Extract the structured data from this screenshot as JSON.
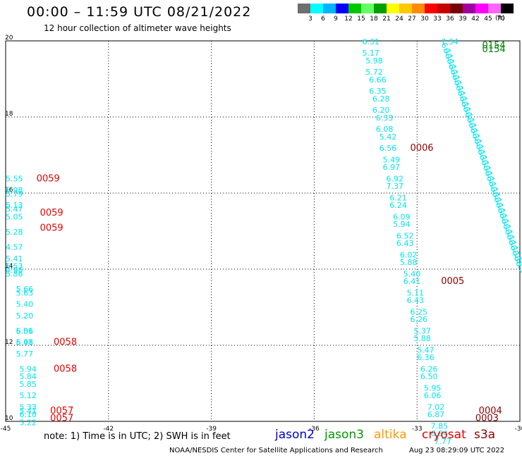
{
  "header": {
    "title": "00:00 – 11:59 UTC 08/21/2022",
    "subtitle": "12 hour collection of altimeter wave heights"
  },
  "colorbar": {
    "colors": [
      "#6e6e6e",
      "#00ffff",
      "#00b4ff",
      "#0000ff",
      "#00c800",
      "#64ff64",
      "#00a000",
      "#ffff00",
      "#ffc800",
      "#ff8c00",
      "#ff0000",
      "#c80000",
      "#780000",
      "#a000a0",
      "#ff00ff",
      "#ff64ff",
      "#000000"
    ],
    "labels": [
      "3",
      "6",
      "9",
      "12",
      "15",
      "18",
      "21",
      "24",
      "27",
      "30",
      "33",
      "36",
      "39",
      "42",
      "45",
      "70"
    ],
    "unit": "(ft)"
  },
  "chart_data": {
    "type": "scatter",
    "title": "00:00 – 11:59 UTC 08/21/2022",
    "subtitle": "12 hour collection of altimeter wave heights",
    "xlim": [
      -45,
      -30
    ],
    "ylim": [
      10,
      20
    ],
    "xticks": [
      "-45",
      "-42",
      "-39",
      "-36",
      "-33",
      "-30"
    ],
    "yticks": [
      "10",
      "12",
      "14",
      "16",
      "18",
      "20"
    ],
    "grid": true,
    "swh_labels": [
      {
        "lon": -45.0,
        "lat": 16.4,
        "text": "5.55",
        "color": "#00e5ee"
      },
      {
        "lon": -45.0,
        "lat": 16.1,
        "text": "5.98",
        "color": "#00e5ee"
      },
      {
        "lon": -45.0,
        "lat": 16.0,
        "text": "5.79",
        "color": "#00e5ee"
      },
      {
        "lon": -45.0,
        "lat": 15.7,
        "text": "5.13",
        "color": "#00e5ee"
      },
      {
        "lon": -45.0,
        "lat": 15.6,
        "text": "5.47",
        "color": "#00e5ee"
      },
      {
        "lon": -45.0,
        "lat": 15.4,
        "text": "5.05",
        "color": "#00e5ee"
      },
      {
        "lon": -45.0,
        "lat": 15.0,
        "text": "5.28",
        "color": "#00e5ee"
      },
      {
        "lon": -45.0,
        "lat": 14.6,
        "text": "4.57",
        "color": "#00e5ee"
      },
      {
        "lon": -45.0,
        "lat": 14.3,
        "text": "5.41",
        "color": "#00e5ee"
      },
      {
        "lon": -45.0,
        "lat": 14.1,
        "text": "5.53",
        "color": "#00e5ee"
      },
      {
        "lon": -45.0,
        "lat": 14.0,
        "text": "4.96",
        "color": "#00e5ee"
      },
      {
        "lon": -45.0,
        "lat": 13.9,
        "text": "5.86",
        "color": "#00e5ee"
      },
      {
        "lon": -44.7,
        "lat": 13.5,
        "text": "5.66",
        "color": "#00e5ee"
      },
      {
        "lon": -44.7,
        "lat": 13.4,
        "text": "5.63",
        "color": "#00e5ee"
      },
      {
        "lon": -44.7,
        "lat": 13.1,
        "text": "5.40",
        "color": "#00e5ee"
      },
      {
        "lon": -44.7,
        "lat": 12.8,
        "text": "5.20",
        "color": "#00e5ee"
      },
      {
        "lon": -44.7,
        "lat": 12.4,
        "text": "6.51",
        "color": "#00e5ee"
      },
      {
        "lon": -44.7,
        "lat": 12.4,
        "text": "5.06",
        "color": "#00e5ee"
      },
      {
        "lon": -44.7,
        "lat": 12.1,
        "text": "6.01",
        "color": "#00e5ee"
      },
      {
        "lon": -44.7,
        "lat": 12.1,
        "text": "5.48",
        "color": "#00e5ee"
      },
      {
        "lon": -44.7,
        "lat": 11.8,
        "text": "5.77",
        "color": "#00e5ee"
      },
      {
        "lon": -44.6,
        "lat": 11.4,
        "text": "5.94",
        "color": "#00e5ee"
      },
      {
        "lon": -44.6,
        "lat": 11.2,
        "text": "5.84",
        "color": "#00e5ee"
      },
      {
        "lon": -44.6,
        "lat": 11.0,
        "text": "5.85",
        "color": "#00e5ee"
      },
      {
        "lon": -44.6,
        "lat": 10.7,
        "text": "5.12",
        "color": "#00e5ee"
      },
      {
        "lon": -44.6,
        "lat": 10.4,
        "text": "5.33",
        "color": "#00e5ee"
      },
      {
        "lon": -44.6,
        "lat": 10.3,
        "text": "5.41",
        "color": "#00e5ee"
      },
      {
        "lon": -44.6,
        "lat": 10.2,
        "text": "6.10",
        "color": "#00e5ee"
      },
      {
        "lon": -44.6,
        "lat": 9.99,
        "text": "5.22",
        "color": "#00e5ee"
      },
      {
        "lon": -34.6,
        "lat": 20.0,
        "text": "6.31",
        "color": "#00e5ee"
      },
      {
        "lon": -34.6,
        "lat": 19.7,
        "text": "5.17",
        "color": "#00e5ee"
      },
      {
        "lon": -34.5,
        "lat": 19.5,
        "text": "5.98",
        "color": "#00e5ee"
      },
      {
        "lon": -34.5,
        "lat": 19.2,
        "text": "5.72",
        "color": "#00e5ee"
      },
      {
        "lon": -34.4,
        "lat": 19.0,
        "text": "6.66",
        "color": "#00e5ee"
      },
      {
        "lon": -34.4,
        "lat": 18.7,
        "text": "6.35",
        "color": "#00e5ee"
      },
      {
        "lon": -34.3,
        "lat": 18.5,
        "text": "6.28",
        "color": "#00e5ee"
      },
      {
        "lon": -34.3,
        "lat": 18.2,
        "text": "6.20",
        "color": "#00e5ee"
      },
      {
        "lon": -34.2,
        "lat": 18.0,
        "text": "6.33",
        "color": "#00e5ee"
      },
      {
        "lon": -34.2,
        "lat": 17.7,
        "text": "6.08",
        "color": "#00e5ee"
      },
      {
        "lon": -34.1,
        "lat": 17.5,
        "text": "5.42",
        "color": "#00e5ee"
      },
      {
        "lon": -34.1,
        "lat": 17.2,
        "text": "6.56",
        "color": "#00e5ee"
      },
      {
        "lon": -34.0,
        "lat": 16.9,
        "text": "5.49",
        "color": "#00e5ee"
      },
      {
        "lon": -34.0,
        "lat": 16.7,
        "text": "6.97",
        "color": "#00e5ee"
      },
      {
        "lon": -33.9,
        "lat": 16.4,
        "text": "6.92",
        "color": "#00e5ee"
      },
      {
        "lon": -33.9,
        "lat": 16.2,
        "text": "7.37",
        "color": "#00e5ee"
      },
      {
        "lon": -33.8,
        "lat": 15.9,
        "text": "6.21",
        "color": "#00e5ee"
      },
      {
        "lon": -33.8,
        "lat": 15.7,
        "text": "6.24",
        "color": "#00e5ee"
      },
      {
        "lon": -33.7,
        "lat": 15.4,
        "text": "6.09",
        "color": "#00e5ee"
      },
      {
        "lon": -33.7,
        "lat": 15.2,
        "text": "5.94",
        "color": "#00e5ee"
      },
      {
        "lon": -33.6,
        "lat": 14.9,
        "text": "6.52",
        "color": "#00e5ee"
      },
      {
        "lon": -33.6,
        "lat": 14.7,
        "text": "6.43",
        "color": "#00e5ee"
      },
      {
        "lon": -33.5,
        "lat": 14.4,
        "text": "6.02",
        "color": "#00e5ee"
      },
      {
        "lon": -33.5,
        "lat": 14.2,
        "text": "5.88",
        "color": "#00e5ee"
      },
      {
        "lon": -33.4,
        "lat": 13.9,
        "text": "5.40",
        "color": "#00e5ee"
      },
      {
        "lon": -33.4,
        "lat": 13.7,
        "text": "6.41",
        "color": "#00e5ee"
      },
      {
        "lon": -33.3,
        "lat": 13.4,
        "text": "5.11",
        "color": "#00e5ee"
      },
      {
        "lon": -33.3,
        "lat": 13.2,
        "text": "6.43",
        "color": "#00e5ee"
      },
      {
        "lon": -33.2,
        "lat": 12.9,
        "text": "6.25",
        "color": "#00e5ee"
      },
      {
        "lon": -33.2,
        "lat": 12.7,
        "text": "6.26",
        "color": "#00e5ee"
      },
      {
        "lon": -33.1,
        "lat": 12.4,
        "text": "5.37",
        "color": "#00e5ee"
      },
      {
        "lon": -33.1,
        "lat": 12.2,
        "text": "5.88",
        "color": "#00e5ee"
      },
      {
        "lon": -33.0,
        "lat": 11.9,
        "text": "5.47",
        "color": "#00e5ee"
      },
      {
        "lon": -33.0,
        "lat": 11.7,
        "text": "6.36",
        "color": "#00e5ee"
      },
      {
        "lon": -32.9,
        "lat": 11.4,
        "text": "6.26",
        "color": "#00e5ee"
      },
      {
        "lon": -32.9,
        "lat": 11.2,
        "text": "6.50",
        "color": "#00e5ee"
      },
      {
        "lon": -32.8,
        "lat": 10.9,
        "text": "5.95",
        "color": "#00e5ee"
      },
      {
        "lon": -32.8,
        "lat": 10.7,
        "text": "6.06",
        "color": "#00e5ee"
      },
      {
        "lon": -32.7,
        "lat": 10.4,
        "text": "7.02",
        "color": "#00e5ee"
      },
      {
        "lon": -32.7,
        "lat": 10.2,
        "text": "6.87",
        "color": "#00e5ee"
      },
      {
        "lon": -32.6,
        "lat": 9.9,
        "text": "7.85",
        "color": "#00e5ee"
      },
      {
        "lon": -32.6,
        "lat": 9.7,
        "text": "6.84",
        "color": "#00e5ee"
      },
      {
        "lon": -32.5,
        "lat": 9.5,
        "text": "7.77",
        "color": "#00e5ee"
      },
      {
        "lon": -32.3,
        "lat": 20.0,
        "text": "7.34",
        "color": "#00e5ee"
      }
    ],
    "pass_labels": [
      {
        "lon": -44.1,
        "lat": 16.4,
        "text": "0059",
        "color": "#e60000"
      },
      {
        "lon": -44.0,
        "lat": 15.5,
        "text": "0059",
        "color": "#e60000"
      },
      {
        "lon": -44.0,
        "lat": 15.1,
        "text": "0059",
        "color": "#e60000"
      },
      {
        "lon": -43.6,
        "lat": 12.1,
        "text": "0058",
        "color": "#e60000"
      },
      {
        "lon": -43.6,
        "lat": 11.4,
        "text": "0058",
        "color": "#e60000"
      },
      {
        "lon": -43.7,
        "lat": 10.3,
        "text": "0057",
        "color": "#e60000"
      },
      {
        "lon": -43.7,
        "lat": 10.1,
        "text": "0057",
        "color": "#e60000"
      },
      {
        "lon": -33.2,
        "lat": 17.2,
        "text": "0006",
        "color": "#8b0000"
      },
      {
        "lon": -32.3,
        "lat": 13.7,
        "text": "0005",
        "color": "#8b0000"
      },
      {
        "lon": -31.2,
        "lat": 10.3,
        "text": "0004",
        "color": "#8b0000"
      },
      {
        "lon": -31.3,
        "lat": 10.1,
        "text": "0003",
        "color": "#8b0000"
      },
      {
        "lon": -31.1,
        "lat": 19.9,
        "text": "0154",
        "color": "#008000"
      },
      {
        "lon": -31.1,
        "lat": 19.8,
        "text": "0154",
        "color": "#008000"
      },
      {
        "lon": -29.8,
        "lat": 17.3,
        "text": "0153",
        "color": "#008000"
      },
      {
        "lon": -29.8,
        "lat": 17.2,
        "text": "0153",
        "color": "#008000"
      }
    ]
  },
  "legend": {
    "note": "note: 1) Time is in UTC; 2) SWH is in feet",
    "satellites": [
      {
        "name": "jason2",
        "color": "#0000cc"
      },
      {
        "name": "jason3",
        "color": "#009900"
      },
      {
        "name": "altika",
        "color": "#ff9900"
      },
      {
        "name": "cryosat",
        "color": "#e60000"
      },
      {
        "name": "s3a",
        "color": "#8b0000"
      }
    ]
  },
  "footer": {
    "credit": "NOAA/NESDIS Center for Satellite Applications and Research",
    "timestamp": "Aug 23 08:29:09 UTC 2022"
  }
}
